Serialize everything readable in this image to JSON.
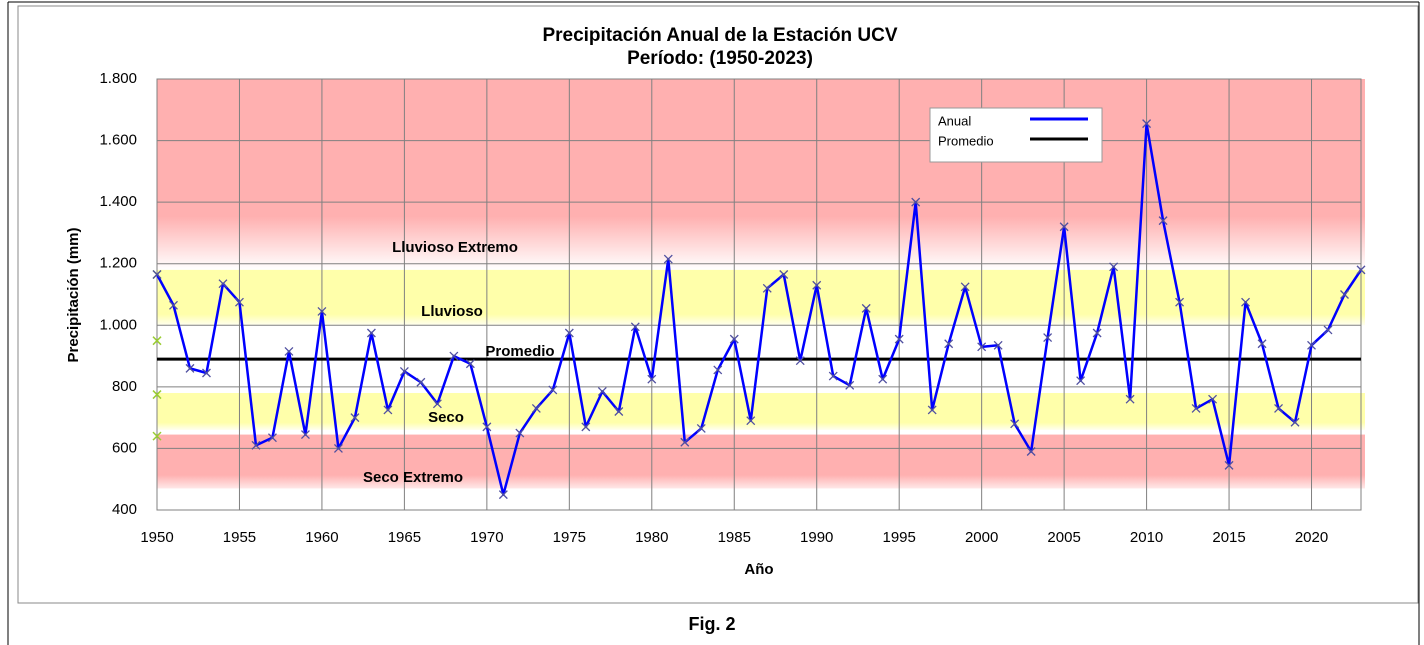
{
  "chart_data": {
    "type": "line",
    "title": "Precipitación Anual de la Estación UCV",
    "subtitle": "Período: (1950-2023)",
    "x_label": "Año",
    "y_label": "Precipitación (mm)",
    "x": [
      1950,
      1951,
      1952,
      1953,
      1954,
      1955,
      1956,
      1957,
      1958,
      1959,
      1960,
      1961,
      1962,
      1963,
      1964,
      1965,
      1966,
      1967,
      1968,
      1969,
      1970,
      1971,
      1972,
      1973,
      1974,
      1975,
      1976,
      1977,
      1978,
      1979,
      1980,
      1981,
      1982,
      1983,
      1984,
      1985,
      1986,
      1987,
      1988,
      1989,
      1990,
      1991,
      1992,
      1993,
      1994,
      1995,
      1996,
      1997,
      1998,
      1999,
      2000,
      2001,
      2002,
      2003,
      2004,
      2005,
      2006,
      2007,
      2008,
      2009,
      2010,
      2011,
      2012,
      2013,
      2014,
      2015,
      2016,
      2017,
      2018,
      2019,
      2020,
      2021,
      2022,
      2023
    ],
    "series": [
      {
        "name": "Anual",
        "color": "#0000ff",
        "values": [
          1165,
          1065,
          860,
          845,
          1135,
          1075,
          610,
          635,
          915,
          645,
          1045,
          600,
          700,
          975,
          725,
          850,
          815,
          745,
          900,
          875,
          670,
          450,
          650,
          730,
          790,
          975,
          670,
          785,
          720,
          995,
          825,
          1215,
          620,
          665,
          855,
          955,
          690,
          1120,
          1165,
          885,
          1130,
          835,
          805,
          1055,
          825,
          955,
          1400,
          725,
          940,
          1125,
          930,
          935,
          680,
          590,
          960,
          1320,
          820,
          975,
          1190,
          760,
          1655,
          1340,
          1075,
          730,
          760,
          545,
          1075,
          940,
          730,
          685,
          935,
          985,
          1100,
          1180
        ]
      }
    ],
    "average": {
      "name": "Promedio",
      "value": 890,
      "color": "#000000"
    },
    "threshold_markers": [
      1165,
      950,
      775,
      640
    ],
    "threshold_marker_color": "#9acd32",
    "bands": [
      {
        "label": "Lluvioso Extremo",
        "from": 1180,
        "to": 1800,
        "color": "#ffb0b0"
      },
      {
        "label": "Lluvioso",
        "from": 1000,
        "to": 1180,
        "color": "#ffffaa"
      },
      {
        "label": "Seco",
        "from": 660,
        "to": 780,
        "color": "#ffffaa"
      },
      {
        "label": "Seco Extremo",
        "from": 470,
        "to": 645,
        "color": "#ffb0b0"
      }
    ],
    "xlim": [
      1950,
      2023
    ],
    "ylim": [
      400,
      1800
    ],
    "xticks": [
      1950,
      1955,
      1960,
      1965,
      1970,
      1975,
      1980,
      1985,
      1990,
      1995,
      2000,
      2005,
      2010,
      2015,
      2020
    ],
    "yticks": [
      400,
      600,
      800,
      {
        "value": 1000,
        "label": "1.000"
      },
      {
        "value": 1200,
        "label": "1.200"
      },
      {
        "value": 1400,
        "label": "1.400"
      },
      {
        "value": 1600,
        "label": "1.600"
      },
      {
        "value": 1800,
        "label": "1.800"
      }
    ],
    "grid": true,
    "legend": "upper right"
  },
  "caption": "Fig. 2"
}
